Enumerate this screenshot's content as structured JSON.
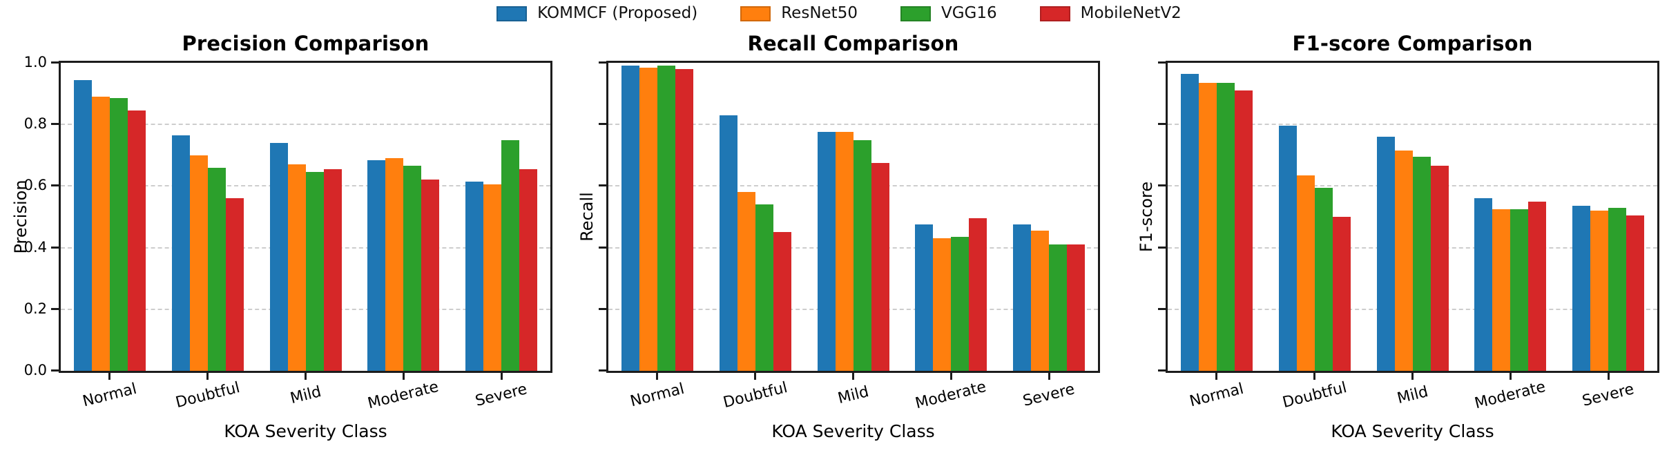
{
  "legend": {
    "items": [
      {
        "label": "KOMMCF (Proposed)",
        "color": "#1f77b4"
      },
      {
        "label": "ResNet50",
        "color": "#ff7f0e"
      },
      {
        "label": "VGG16",
        "color": "#2ca02c"
      },
      {
        "label": "MobileNetV2",
        "color": "#d62728"
      }
    ]
  },
  "chart_data": [
    {
      "type": "bar",
      "title": "Precision Comparison",
      "xlabel": "KOA Severity Class",
      "ylabel": "Precision",
      "categories": [
        "Normal",
        "Doubtful",
        "Mild",
        "Moderate",
        "Severe"
      ],
      "ylim": [
        0.0,
        1.0
      ],
      "ytick_labels": [
        "0.0",
        "0.2",
        "0.4",
        "0.6",
        "0.8",
        "1.0"
      ],
      "ytick_labels_visible": true,
      "grid": "horizontal-dashed",
      "legend_position": "figure-top-center",
      "series": [
        {
          "name": "KOMMCF (Proposed)",
          "color": "#1f77b4",
          "values": [
            0.945,
            0.765,
            0.74,
            0.685,
            0.615
          ]
        },
        {
          "name": "ResNet50",
          "color": "#ff7f0e",
          "values": [
            0.89,
            0.7,
            0.67,
            0.69,
            0.605
          ]
        },
        {
          "name": "VGG16",
          "color": "#2ca02c",
          "values": [
            0.885,
            0.66,
            0.645,
            0.665,
            0.75
          ]
        },
        {
          "name": "MobileNetV2",
          "color": "#d62728",
          "values": [
            0.845,
            0.56,
            0.655,
            0.62,
            0.655
          ]
        }
      ]
    },
    {
      "type": "bar",
      "title": "Recall Comparison",
      "xlabel": "KOA Severity Class",
      "ylabel": "Recall",
      "categories": [
        "Normal",
        "Doubtful",
        "Mild",
        "Moderate",
        "Severe"
      ],
      "ylim": [
        0.0,
        1.0
      ],
      "ytick_labels": [
        "0.0",
        "0.2",
        "0.4",
        "0.6",
        "0.8",
        "1.0"
      ],
      "ytick_labels_visible": false,
      "grid": "horizontal-dashed",
      "legend_position": "figure-top-center",
      "series": [
        {
          "name": "KOMMCF (Proposed)",
          "color": "#1f77b4",
          "values": [
            0.99,
            0.83,
            0.775,
            0.475,
            0.475
          ]
        },
        {
          "name": "ResNet50",
          "color": "#ff7f0e",
          "values": [
            0.985,
            0.58,
            0.775,
            0.43,
            0.455
          ]
        },
        {
          "name": "VGG16",
          "color": "#2ca02c",
          "values": [
            0.99,
            0.54,
            0.75,
            0.435,
            0.41
          ]
        },
        {
          "name": "MobileNetV2",
          "color": "#d62728",
          "values": [
            0.98,
            0.45,
            0.675,
            0.495,
            0.41
          ]
        }
      ]
    },
    {
      "type": "bar",
      "title": "F1-score Comparison",
      "xlabel": "KOA Severity Class",
      "ylabel": "F1-score",
      "categories": [
        "Normal",
        "Doubtful",
        "Mild",
        "Moderate",
        "Severe"
      ],
      "ylim": [
        0.0,
        1.0
      ],
      "ytick_labels": [
        "0.0",
        "0.2",
        "0.4",
        "0.6",
        "0.8",
        "1.0"
      ],
      "ytick_labels_visible": false,
      "grid": "horizontal-dashed",
      "legend_position": "figure-top-center",
      "series": [
        {
          "name": "KOMMCF (Proposed)",
          "color": "#1f77b4",
          "values": [
            0.965,
            0.795,
            0.76,
            0.56,
            0.535
          ]
        },
        {
          "name": "ResNet50",
          "color": "#ff7f0e",
          "values": [
            0.935,
            0.635,
            0.715,
            0.525,
            0.52
          ]
        },
        {
          "name": "VGG16",
          "color": "#2ca02c",
          "values": [
            0.935,
            0.595,
            0.695,
            0.525,
            0.53
          ]
        },
        {
          "name": "MobileNetV2",
          "color": "#d62728",
          "values": [
            0.91,
            0.5,
            0.665,
            0.55,
            0.505
          ]
        }
      ]
    }
  ]
}
